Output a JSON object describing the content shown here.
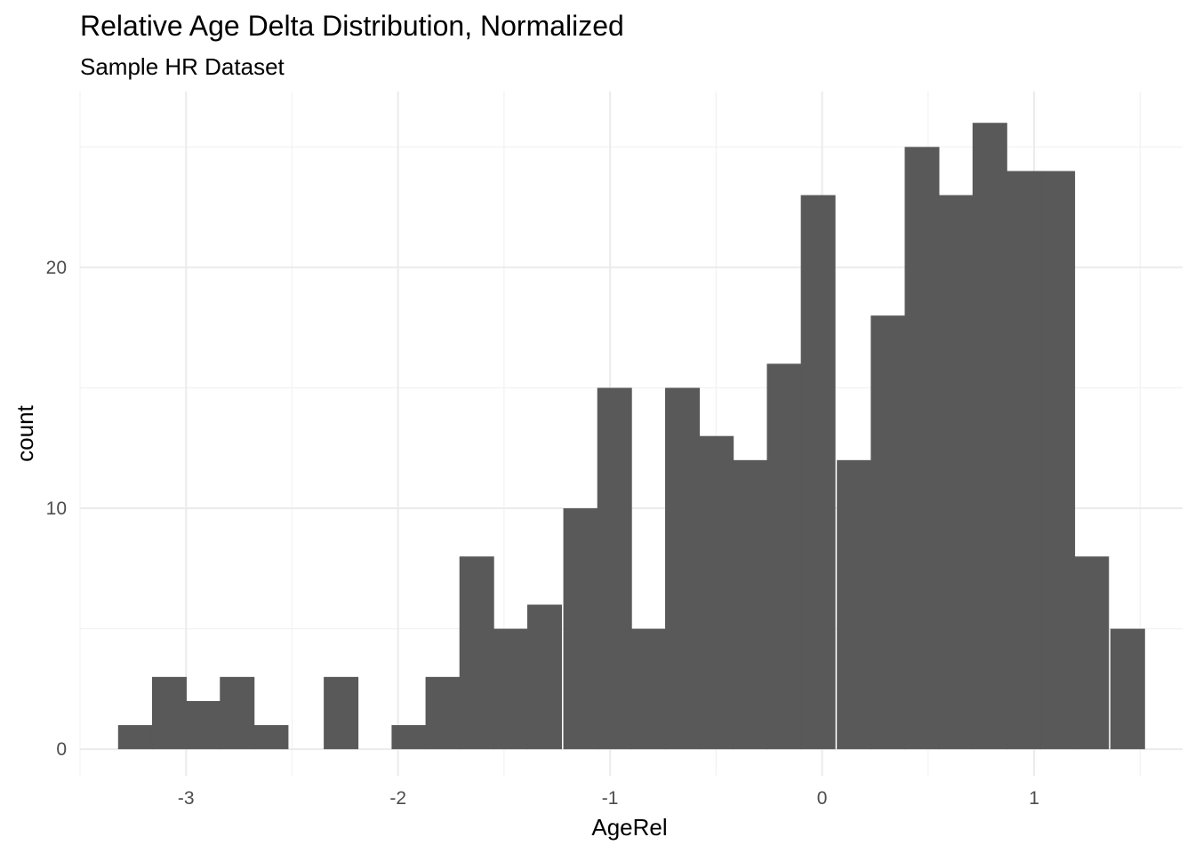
{
  "chart_data": {
    "type": "bar",
    "title": "Relative Age Delta Distribution, Normalized",
    "subtitle": "Sample HR Dataset",
    "xlabel": "AgeRel",
    "ylabel": "count",
    "xlim": [
      -3.5,
      1.7
    ],
    "ylim": [
      -1.1,
      27.3
    ],
    "x_ticks": [
      -3,
      -2,
      -1,
      0,
      1
    ],
    "x_tick_labels": [
      "-3",
      "-2",
      "-1",
      "0",
      "1"
    ],
    "y_ticks": [
      0,
      10,
      20
    ],
    "y_tick_labels": [
      "0",
      "10",
      "20"
    ],
    "x_minor_ticks": [
      -3.5,
      -2.5,
      -1.5,
      -0.5,
      0.5,
      1.5
    ],
    "y_minor_ticks": [
      5,
      15,
      25
    ],
    "grid": true,
    "bin_width": 0.161,
    "bins": [
      {
        "x": -3.24,
        "count": 1
      },
      {
        "x": -3.08,
        "count": 3
      },
      {
        "x": -2.92,
        "count": 2
      },
      {
        "x": -2.76,
        "count": 3
      },
      {
        "x": -2.6,
        "count": 1
      },
      {
        "x": -2.43,
        "count": 0
      },
      {
        "x": -2.27,
        "count": 3
      },
      {
        "x": -2.11,
        "count": 0
      },
      {
        "x": -1.95,
        "count": 1
      },
      {
        "x": -1.79,
        "count": 3
      },
      {
        "x": -1.63,
        "count": 8
      },
      {
        "x": -1.47,
        "count": 5
      },
      {
        "x": -1.31,
        "count": 6
      },
      {
        "x": -1.14,
        "count": 10
      },
      {
        "x": -0.98,
        "count": 15
      },
      {
        "x": -0.82,
        "count": 5
      },
      {
        "x": -0.66,
        "count": 15
      },
      {
        "x": -0.5,
        "count": 13
      },
      {
        "x": -0.34,
        "count": 12
      },
      {
        "x": -0.18,
        "count": 16
      },
      {
        "x": -0.02,
        "count": 23
      },
      {
        "x": 0.15,
        "count": 12
      },
      {
        "x": 0.31,
        "count": 18
      },
      {
        "x": 0.47,
        "count": 25
      },
      {
        "x": 0.63,
        "count": 23
      },
      {
        "x": 0.79,
        "count": 26
      },
      {
        "x": 0.95,
        "count": 24
      },
      {
        "x": 1.11,
        "count": 24
      },
      {
        "x": 1.27,
        "count": 8
      },
      {
        "x": 1.44,
        "count": 5
      }
    ],
    "bar_color": "#595959",
    "grid_color": "#ebebeb",
    "background": "#ffffff"
  }
}
